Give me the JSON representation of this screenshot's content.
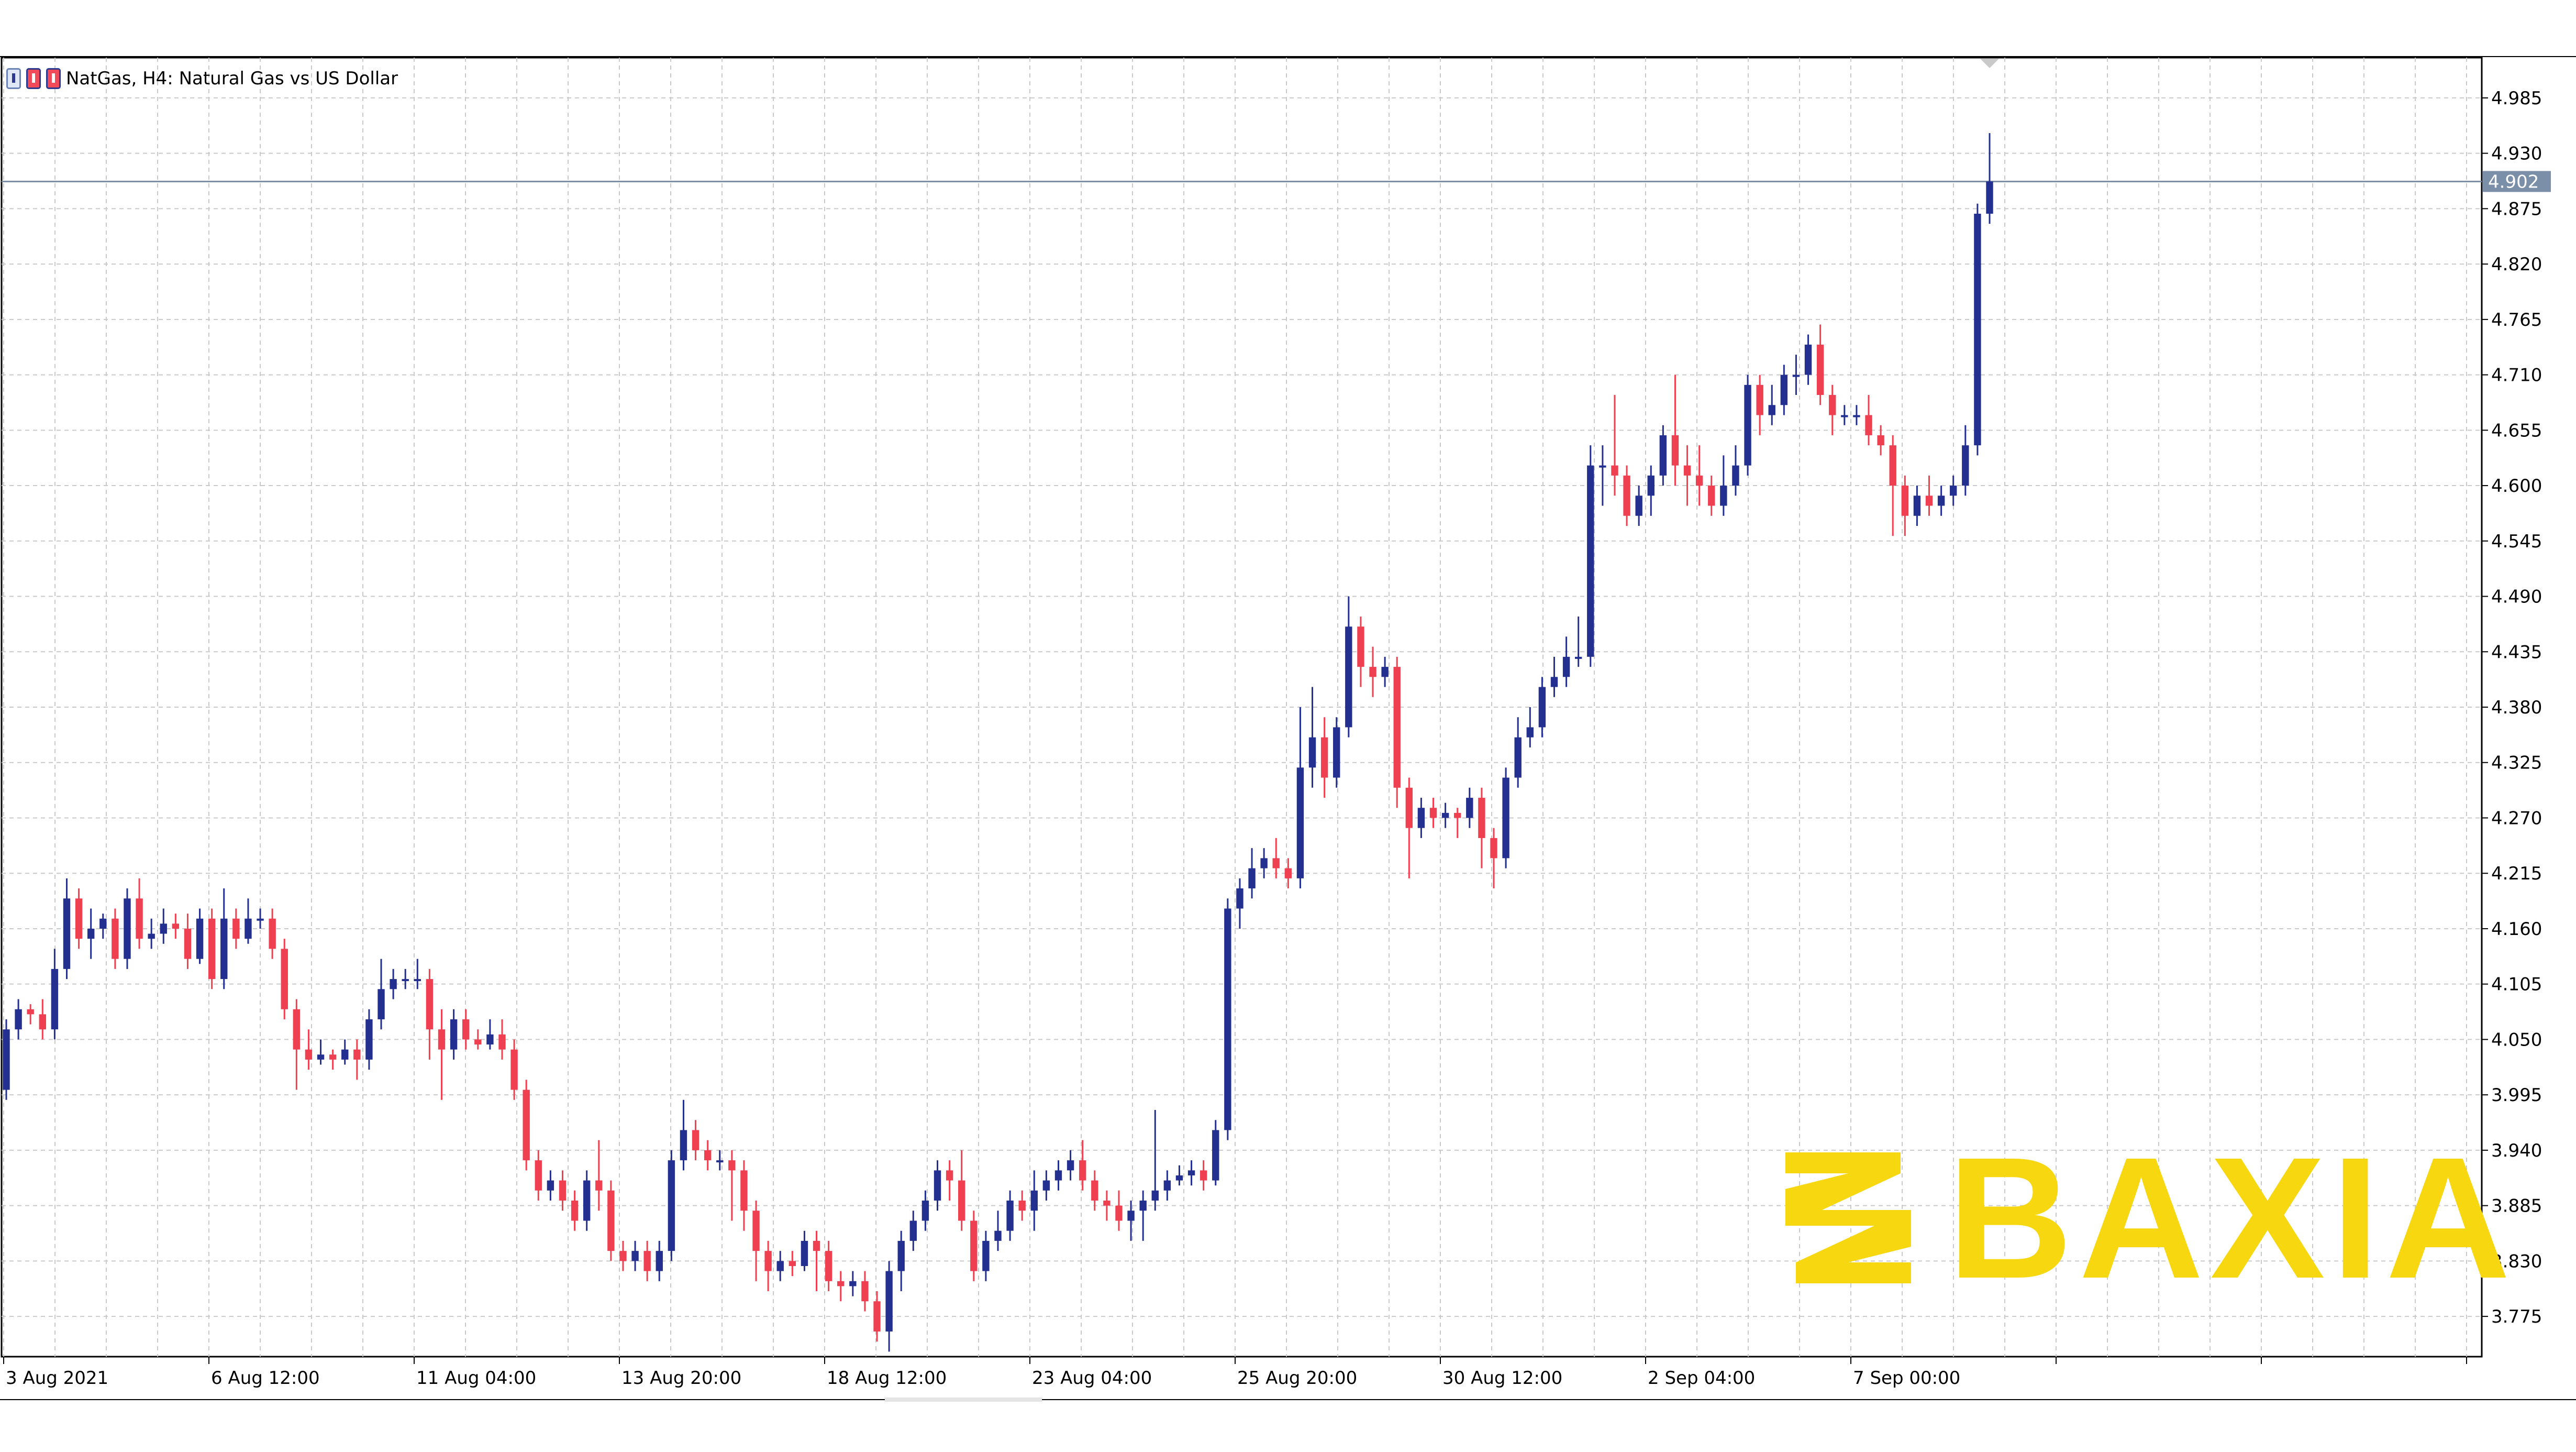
{
  "title": "NatGas, H4:  Natural Gas vs US Dollar",
  "watermark": "BAXIA",
  "colors": {
    "bull": "#23308f",
    "bear": "#ee4050",
    "grid": "#c9c9c9",
    "price_line": "#7c8fa8",
    "price_label_bg": "#7c8fa8",
    "watermark": "#f7d70f"
  },
  "chart_data": {
    "type": "candlestick",
    "symbol": "NatGas",
    "timeframe": "H4",
    "y_ticks": [
      "4.985",
      "4.930",
      "4.875",
      "4.820",
      "4.765",
      "4.710",
      "4.655",
      "4.600",
      "4.545",
      "4.490",
      "4.435",
      "4.380",
      "4.325",
      "4.270",
      "4.215",
      "4.160",
      "4.105",
      "4.050",
      "3.995",
      "3.940",
      "3.885",
      "3.830",
      "3.775"
    ],
    "x_ticks": [
      "3 Aug 2021",
      "6 Aug 12:00",
      "11 Aug 04:00",
      "13 Aug 20:00",
      "18 Aug 12:00",
      "23 Aug 04:00",
      "25 Aug 20:00",
      "30 Aug 12:00",
      "2 Sep 04:00",
      "7 Sep 00:00"
    ],
    "ylim": [
      3.735,
      5.025
    ],
    "current_price": "4.902",
    "candles": [
      [
        4.0,
        4.06,
        4.07,
        3.99
      ],
      [
        4.06,
        4.08,
        4.09,
        4.05
      ],
      [
        4.08,
        4.075,
        4.085,
        4.065
      ],
      [
        4.075,
        4.06,
        4.09,
        4.05
      ],
      [
        4.06,
        4.12,
        4.14,
        4.05
      ],
      [
        4.12,
        4.19,
        4.21,
        4.11
      ],
      [
        4.19,
        4.15,
        4.2,
        4.14
      ],
      [
        4.15,
        4.16,
        4.18,
        4.13
      ],
      [
        4.16,
        4.17,
        4.175,
        4.15
      ],
      [
        4.17,
        4.13,
        4.18,
        4.12
      ],
      [
        4.13,
        4.19,
        4.2,
        4.12
      ],
      [
        4.19,
        4.15,
        4.21,
        4.14
      ],
      [
        4.15,
        4.155,
        4.17,
        4.14
      ],
      [
        4.155,
        4.165,
        4.18,
        4.145
      ],
      [
        4.165,
        4.16,
        4.175,
        4.15
      ],
      [
        4.16,
        4.13,
        4.175,
        4.12
      ],
      [
        4.13,
        4.17,
        4.18,
        4.125
      ],
      [
        4.17,
        4.11,
        4.18,
        4.1
      ],
      [
        4.11,
        4.17,
        4.2,
        4.1
      ],
      [
        4.17,
        4.15,
        4.18,
        4.14
      ],
      [
        4.15,
        4.17,
        4.19,
        4.145
      ],
      [
        4.17,
        4.17,
        4.18,
        4.16
      ],
      [
        4.17,
        4.14,
        4.18,
        4.13
      ],
      [
        4.14,
        4.08,
        4.15,
        4.07
      ],
      [
        4.08,
        4.04,
        4.09,
        4.0
      ],
      [
        4.04,
        4.03,
        4.06,
        4.02
      ],
      [
        4.03,
        4.035,
        4.05,
        4.025
      ],
      [
        4.035,
        4.03,
        4.04,
        4.02
      ],
      [
        4.03,
        4.04,
        4.05,
        4.025
      ],
      [
        4.04,
        4.03,
        4.05,
        4.01
      ],
      [
        4.03,
        4.07,
        4.08,
        4.02
      ],
      [
        4.07,
        4.1,
        4.13,
        4.06
      ],
      [
        4.1,
        4.11,
        4.12,
        4.09
      ],
      [
        4.11,
        4.11,
        4.12,
        4.1
      ],
      [
        4.11,
        4.11,
        4.13,
        4.1
      ],
      [
        4.11,
        4.06,
        4.12,
        4.03
      ],
      [
        4.06,
        4.04,
        4.08,
        3.99
      ],
      [
        4.04,
        4.07,
        4.08,
        4.03
      ],
      [
        4.07,
        4.05,
        4.08,
        4.04
      ],
      [
        4.05,
        4.045,
        4.06,
        4.04
      ],
      [
        4.045,
        4.055,
        4.07,
        4.04
      ],
      [
        4.055,
        4.04,
        4.07,
        4.03
      ],
      [
        4.04,
        4.0,
        4.05,
        3.99
      ],
      [
        4.0,
        3.93,
        4.01,
        3.92
      ],
      [
        3.93,
        3.9,
        3.94,
        3.89
      ],
      [
        3.9,
        3.91,
        3.92,
        3.89
      ],
      [
        3.91,
        3.89,
        3.92,
        3.88
      ],
      [
        3.89,
        3.87,
        3.9,
        3.86
      ],
      [
        3.87,
        3.91,
        3.92,
        3.86
      ],
      [
        3.91,
        3.9,
        3.95,
        3.88
      ],
      [
        3.9,
        3.84,
        3.91,
        3.83
      ],
      [
        3.84,
        3.83,
        3.85,
        3.82
      ],
      [
        3.83,
        3.84,
        3.85,
        3.82
      ],
      [
        3.84,
        3.82,
        3.85,
        3.81
      ],
      [
        3.82,
        3.84,
        3.85,
        3.81
      ],
      [
        3.84,
        3.93,
        3.94,
        3.83
      ],
      [
        3.93,
        3.96,
        3.99,
        3.92
      ],
      [
        3.96,
        3.94,
        3.97,
        3.93
      ],
      [
        3.94,
        3.93,
        3.95,
        3.92
      ],
      [
        3.93,
        3.93,
        3.94,
        3.92
      ],
      [
        3.93,
        3.92,
        3.94,
        3.87
      ],
      [
        3.92,
        3.88,
        3.93,
        3.86
      ],
      [
        3.88,
        3.84,
        3.89,
        3.81
      ],
      [
        3.84,
        3.82,
        3.85,
        3.8
      ],
      [
        3.82,
        3.83,
        3.84,
        3.81
      ],
      [
        3.83,
        3.825,
        3.84,
        3.815
      ],
      [
        3.825,
        3.85,
        3.86,
        3.82
      ],
      [
        3.85,
        3.84,
        3.86,
        3.8
      ],
      [
        3.84,
        3.81,
        3.85,
        3.8
      ],
      [
        3.81,
        3.805,
        3.82,
        3.79
      ],
      [
        3.805,
        3.81,
        3.82,
        3.795
      ],
      [
        3.81,
        3.79,
        3.82,
        3.78
      ],
      [
        3.79,
        3.76,
        3.8,
        3.75
      ],
      [
        3.76,
        3.82,
        3.83,
        3.74
      ],
      [
        3.82,
        3.85,
        3.86,
        3.8
      ],
      [
        3.85,
        3.87,
        3.88,
        3.84
      ],
      [
        3.87,
        3.89,
        3.9,
        3.86
      ],
      [
        3.89,
        3.92,
        3.93,
        3.88
      ],
      [
        3.92,
        3.91,
        3.93,
        3.89
      ],
      [
        3.91,
        3.87,
        3.94,
        3.86
      ],
      [
        3.87,
        3.82,
        3.88,
        3.81
      ],
      [
        3.82,
        3.85,
        3.86,
        3.81
      ],
      [
        3.85,
        3.86,
        3.88,
        3.84
      ],
      [
        3.86,
        3.89,
        3.9,
        3.85
      ],
      [
        3.89,
        3.88,
        3.9,
        3.87
      ],
      [
        3.88,
        3.9,
        3.92,
        3.86
      ],
      [
        3.9,
        3.91,
        3.92,
        3.89
      ],
      [
        3.91,
        3.92,
        3.93,
        3.9
      ],
      [
        3.92,
        3.93,
        3.94,
        3.91
      ],
      [
        3.93,
        3.91,
        3.95,
        3.9
      ],
      [
        3.91,
        3.89,
        3.92,
        3.88
      ],
      [
        3.89,
        3.885,
        3.9,
        3.87
      ],
      [
        3.885,
        3.87,
        3.9,
        3.86
      ],
      [
        3.87,
        3.88,
        3.89,
        3.85
      ],
      [
        3.88,
        3.89,
        3.9,
        3.85
      ],
      [
        3.89,
        3.9,
        3.98,
        3.88
      ],
      [
        3.9,
        3.91,
        3.92,
        3.89
      ],
      [
        3.91,
        3.915,
        3.925,
        3.905
      ],
      [
        3.915,
        3.92,
        3.93,
        3.905
      ],
      [
        3.92,
        3.91,
        3.93,
        3.9
      ],
      [
        3.91,
        3.96,
        3.97,
        3.905
      ],
      [
        3.96,
        4.18,
        4.19,
        3.95
      ],
      [
        4.18,
        4.2,
        4.21,
        4.16
      ],
      [
        4.2,
        4.22,
        4.24,
        4.19
      ],
      [
        4.22,
        4.23,
        4.24,
        4.21
      ],
      [
        4.23,
        4.22,
        4.25,
        4.21
      ],
      [
        4.22,
        4.21,
        4.23,
        4.2
      ],
      [
        4.21,
        4.32,
        4.38,
        4.2
      ],
      [
        4.32,
        4.35,
        4.4,
        4.3
      ],
      [
        4.35,
        4.31,
        4.37,
        4.29
      ],
      [
        4.31,
        4.36,
        4.37,
        4.3
      ],
      [
        4.36,
        4.46,
        4.49,
        4.35
      ],
      [
        4.46,
        4.42,
        4.47,
        4.4
      ],
      [
        4.42,
        4.41,
        4.44,
        4.39
      ],
      [
        4.41,
        4.42,
        4.43,
        4.4
      ],
      [
        4.42,
        4.3,
        4.43,
        4.28
      ],
      [
        4.3,
        4.26,
        4.31,
        4.21
      ],
      [
        4.26,
        4.28,
        4.29,
        4.25
      ],
      [
        4.28,
        4.27,
        4.29,
        4.26
      ],
      [
        4.27,
        4.275,
        4.285,
        4.26
      ],
      [
        4.275,
        4.27,
        4.28,
        4.25
      ],
      [
        4.27,
        4.29,
        4.3,
        4.26
      ],
      [
        4.29,
        4.25,
        4.3,
        4.22
      ],
      [
        4.25,
        4.23,
        4.26,
        4.2
      ],
      [
        4.23,
        4.31,
        4.32,
        4.22
      ],
      [
        4.31,
        4.35,
        4.37,
        4.3
      ],
      [
        4.35,
        4.36,
        4.38,
        4.34
      ],
      [
        4.36,
        4.4,
        4.41,
        4.35
      ],
      [
        4.4,
        4.41,
        4.43,
        4.39
      ],
      [
        4.41,
        4.43,
        4.45,
        4.4
      ],
      [
        4.43,
        4.43,
        4.47,
        4.42
      ],
      [
        4.43,
        4.62,
        4.64,
        4.42
      ],
      [
        4.62,
        4.62,
        4.64,
        4.58
      ],
      [
        4.62,
        4.61,
        4.69,
        4.59
      ],
      [
        4.61,
        4.57,
        4.62,
        4.56
      ],
      [
        4.57,
        4.59,
        4.6,
        4.56
      ],
      [
        4.59,
        4.61,
        4.62,
        4.57
      ],
      [
        4.61,
        4.65,
        4.66,
        4.6
      ],
      [
        4.65,
        4.62,
        4.71,
        4.6
      ],
      [
        4.62,
        4.61,
        4.64,
        4.58
      ],
      [
        4.61,
        4.6,
        4.64,
        4.58
      ],
      [
        4.6,
        4.58,
        4.61,
        4.57
      ],
      [
        4.58,
        4.6,
        4.63,
        4.57
      ],
      [
        4.6,
        4.62,
        4.64,
        4.59
      ],
      [
        4.62,
        4.7,
        4.71,
        4.61
      ],
      [
        4.7,
        4.67,
        4.71,
        4.65
      ],
      [
        4.67,
        4.68,
        4.7,
        4.66
      ],
      [
        4.68,
        4.71,
        4.72,
        4.67
      ],
      [
        4.71,
        4.71,
        4.73,
        4.69
      ],
      [
        4.71,
        4.74,
        4.75,
        4.7
      ],
      [
        4.74,
        4.69,
        4.76,
        4.68
      ],
      [
        4.69,
        4.67,
        4.7,
        4.65
      ],
      [
        4.67,
        4.67,
        4.68,
        4.66
      ],
      [
        4.67,
        4.67,
        4.68,
        4.66
      ],
      [
        4.67,
        4.65,
        4.69,
        4.64
      ],
      [
        4.65,
        4.64,
        4.66,
        4.63
      ],
      [
        4.64,
        4.6,
        4.65,
        4.55
      ],
      [
        4.6,
        4.57,
        4.61,
        4.55
      ],
      [
        4.57,
        4.59,
        4.6,
        4.56
      ],
      [
        4.59,
        4.58,
        4.61,
        4.57
      ],
      [
        4.58,
        4.59,
        4.6,
        4.57
      ],
      [
        4.59,
        4.6,
        4.61,
        4.58
      ],
      [
        4.6,
        4.64,
        4.66,
        4.59
      ],
      [
        4.64,
        4.87,
        4.88,
        4.63
      ],
      [
        4.87,
        4.902,
        4.95,
        4.86
      ]
    ]
  }
}
